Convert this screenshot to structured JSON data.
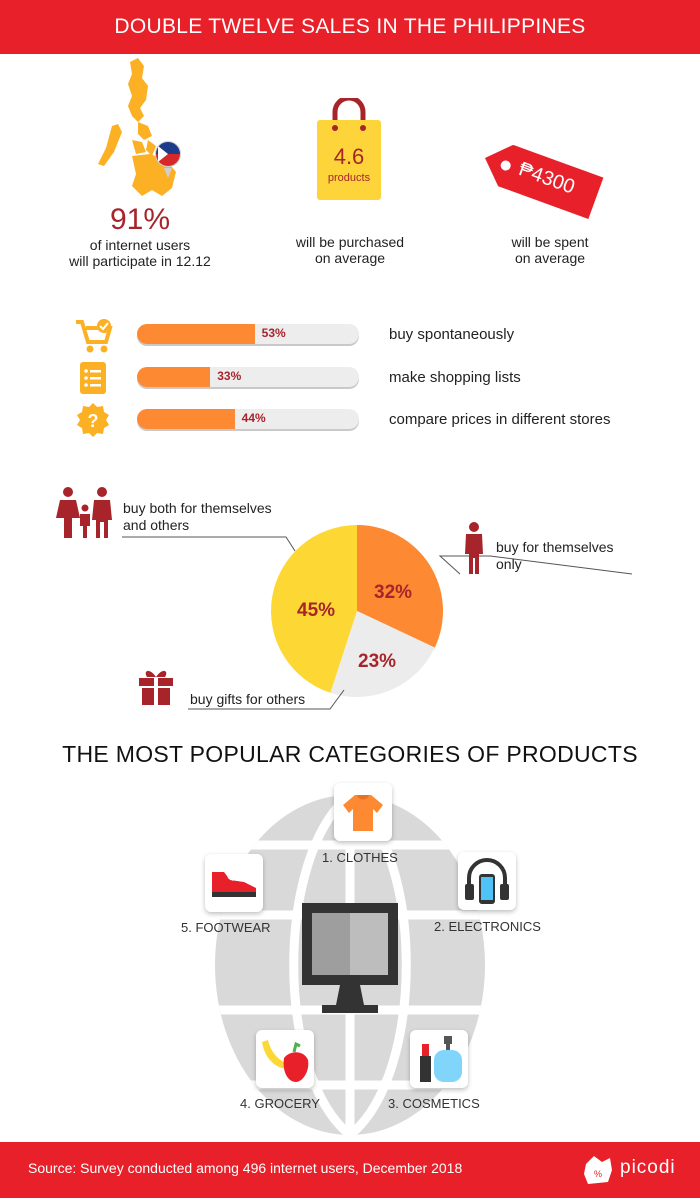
{
  "header": {
    "title": "DOUBLE TWELVE SALES IN THE PHILIPPINES"
  },
  "stats": {
    "participation": {
      "value": "91%",
      "line1": "of internet users",
      "line2": "will participate in 12.12"
    },
    "products": {
      "value": "4.6",
      "unit": "products",
      "line1": "will be purchased",
      "line2": "on average"
    },
    "spent": {
      "value": "₱4300",
      "line1": "will be spent",
      "line2": "on average"
    }
  },
  "behaviors": [
    {
      "percent_label": "53%",
      "value": 53,
      "label": "buy spontaneously",
      "icon": "cart-check-icon"
    },
    {
      "percent_label": "33%",
      "value": 33,
      "label": "make shopping lists",
      "icon": "list-icon"
    },
    {
      "percent_label": "44%",
      "value": 44,
      "label": "compare prices in different stores",
      "icon": "question-icon"
    }
  ],
  "pie": {
    "slices": [
      {
        "label_line1": "buy for themselves",
        "label_line2": "only",
        "value": 32,
        "percent_label": "32%",
        "color": "#fd8a32"
      },
      {
        "label_line1": "buy gifts for others",
        "label_line2": "",
        "value": 23,
        "percent_label": "23%",
        "color": "#ececec"
      },
      {
        "label_line1": "buy both for themselves",
        "label_line2": "and others",
        "value": 45,
        "percent_label": "45%",
        "color": "#fdd835"
      }
    ]
  },
  "categories_title": "THE MOST POPULAR CATEGORIES OF PRODUCTS",
  "categories": [
    {
      "label": "1. CLOTHES",
      "icon": "tshirt-icon"
    },
    {
      "label": "2. ELECTRONICS",
      "icon": "headphones-phone-icon"
    },
    {
      "label": "3. COSMETICS",
      "icon": "lipstick-perfume-icon"
    },
    {
      "label": "4. GROCERY",
      "icon": "banana-pepper-icon"
    },
    {
      "label": "5. FOOTWEAR",
      "icon": "sneaker-icon"
    }
  ],
  "footer": {
    "source": "Source: Survey conducted among 496 internet users, December 2018",
    "brand": "picodi"
  },
  "chart_data": {
    "type": "pie",
    "title": "",
    "categories": [
      "buy for themselves only",
      "buy gifts for others",
      "buy both for themselves and others"
    ],
    "values": [
      32,
      23,
      45
    ],
    "bars": {
      "type": "bar",
      "categories": [
        "buy spontaneously",
        "make shopping lists",
        "compare prices in different stores"
      ],
      "values": [
        53,
        33,
        44
      ],
      "ylim": [
        0,
        100
      ]
    }
  },
  "colors": {
    "brand_red": "#e8202a",
    "accent_orange": "#fd8a32",
    "accent_yellow": "#fdd835",
    "dark_red": "#a8242b"
  }
}
